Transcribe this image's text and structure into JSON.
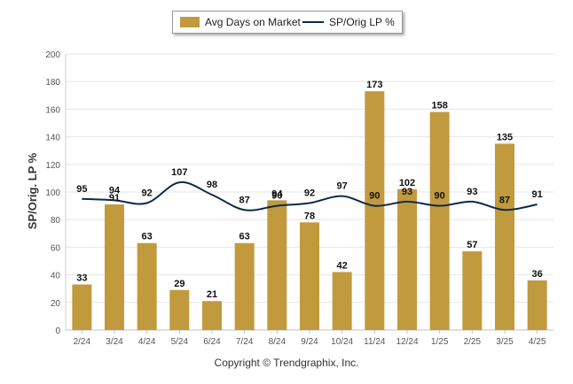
{
  "legend": {
    "bar_label": "Avg Days on Market",
    "line_label": "SP/Orig LP %"
  },
  "copyright": "Copyright © Trendgraphix, Inc.",
  "colors": {
    "bar": "#c29a3e",
    "line": "#0b2a4a",
    "grid": "#e6e6e6"
  },
  "chart_data": {
    "type": "bar",
    "ylabel": "SP/Orig. LP %",
    "ylim": [
      0,
      200
    ],
    "yticks": [
      0,
      20,
      40,
      60,
      80,
      100,
      120,
      140,
      160,
      180,
      200
    ],
    "legend_position": "top-center",
    "grid": true,
    "categories": [
      "2/24",
      "3/24",
      "4/24",
      "5/24",
      "6/24",
      "7/24",
      "8/24",
      "9/24",
      "10/24",
      "11/24",
      "12/24",
      "1/25",
      "2/25",
      "3/25",
      "4/25"
    ],
    "series": [
      {
        "name": "Avg Days on Market",
        "type": "bar",
        "values": [
          33,
          91,
          63,
          29,
          21,
          63,
          94,
          78,
          42,
          173,
          102,
          158,
          57,
          135,
          36
        ]
      },
      {
        "name": "SP/Orig LP %",
        "type": "line",
        "values": [
          95,
          94,
          92,
          107,
          98,
          87,
          90,
          92,
          97,
          90,
          93,
          90,
          93,
          87,
          91
        ]
      }
    ]
  }
}
